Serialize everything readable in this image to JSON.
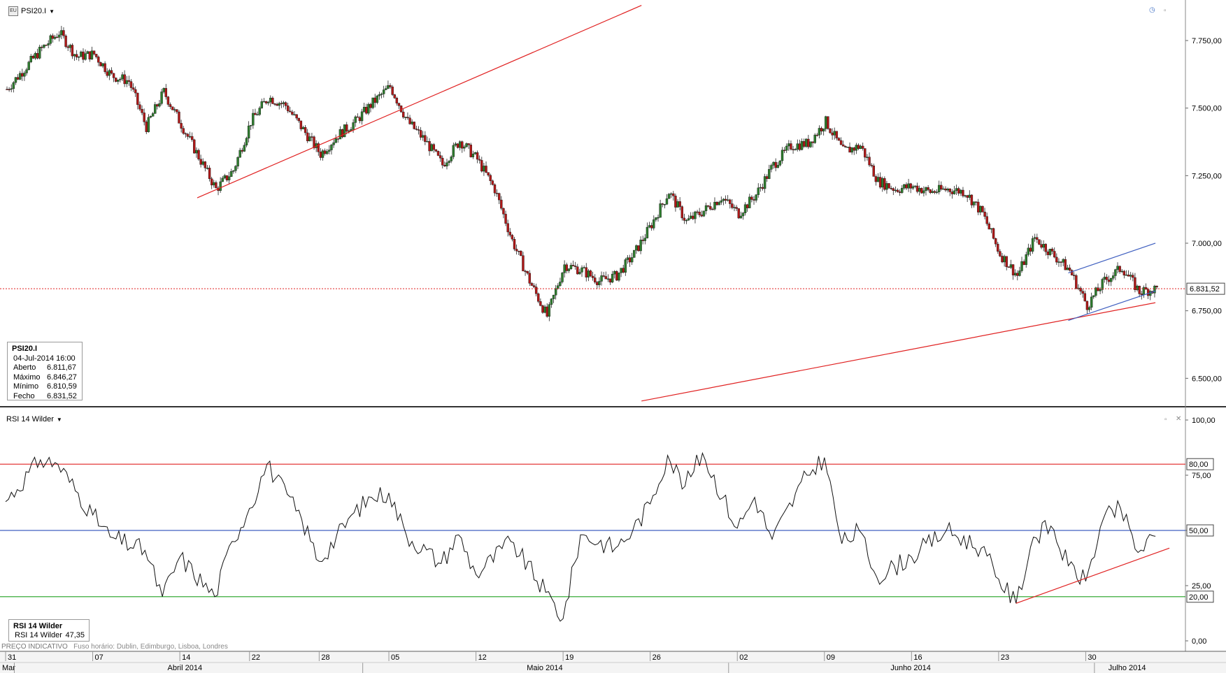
{
  "main_pane": {
    "symbol": "PSI20.I",
    "info": {
      "title": "PSI20.I",
      "datetime": "04-Jul-2014 16:00",
      "rows": [
        {
          "label": "Aberto",
          "value": "6.811,67"
        },
        {
          "label": "Máximo",
          "value": "6.846,27"
        },
        {
          "label": "Mínimo",
          "value": "6.810,59"
        },
        {
          "label": "Fecho",
          "value": "6.831,52"
        }
      ]
    },
    "current_price_label": "6.831,52"
  },
  "rsi_pane": {
    "name": "RSI 14 Wilder",
    "info": {
      "title": "RSI 14 Wilder",
      "label": "RSI 14 Wilder",
      "value": "47,35"
    },
    "level_labels": {
      "high": "80,00",
      "mid": "50,00",
      "low": "20,00"
    }
  },
  "footer": {
    "note_label": "PREÇO INDICATIVO",
    "timezone": "Fuso horário: Dublin, Edimburgo, Lisboa, Londres"
  },
  "chart_data": [
    {
      "type": "candlestick",
      "title": "PSI20.I",
      "x_start": "2014-03-31",
      "x_end": "2014-07-04",
      "interval": "hourly",
      "ylim": [
        6400,
        7900
      ],
      "y_ticks": [
        "6.500,00",
        "6.750,00",
        "7.000,00",
        "7.250,00",
        "7.500,00",
        "7.750,00"
      ],
      "x_day_ticks": [
        "31",
        "07",
        "14",
        "22",
        "28",
        "05",
        "12",
        "19",
        "26",
        "02",
        "09",
        "16",
        "23",
        "30"
      ],
      "x_month_ticks": [
        "Mar",
        "Abril 2014",
        "Maio 2014",
        "Junho 2014",
        "Julho 2014"
      ],
      "close_path": [
        {
          "x": "2014-03-31",
          "y": 7570
        },
        {
          "x": "2014-04-02",
          "y": 7720
        },
        {
          "x": "2014-04-03",
          "y": 7780
        },
        {
          "x": "2014-04-04",
          "y": 7690
        },
        {
          "x": "2014-04-07",
          "y": 7700
        },
        {
          "x": "2014-04-08",
          "y": 7620
        },
        {
          "x": "2014-04-09",
          "y": 7600
        },
        {
          "x": "2014-04-10",
          "y": 7430
        },
        {
          "x": "2014-04-11",
          "y": 7560
        },
        {
          "x": "2014-04-14",
          "y": 7440
        },
        {
          "x": "2014-04-15",
          "y": 7320
        },
        {
          "x": "2014-04-16",
          "y": 7200
        },
        {
          "x": "2014-04-17",
          "y": 7270
        },
        {
          "x": "2014-04-22",
          "y": 7450
        },
        {
          "x": "2014-04-23",
          "y": 7540
        },
        {
          "x": "2014-04-24",
          "y": 7510
        },
        {
          "x": "2014-04-25",
          "y": 7420
        },
        {
          "x": "2014-04-28",
          "y": 7330
        },
        {
          "x": "2014-04-29",
          "y": 7400
        },
        {
          "x": "2014-04-30",
          "y": 7450
        },
        {
          "x": "2014-05-02",
          "y": 7520
        },
        {
          "x": "2014-05-05",
          "y": 7580
        },
        {
          "x": "2014-05-06",
          "y": 7450
        },
        {
          "x": "2014-05-07",
          "y": 7380
        },
        {
          "x": "2014-05-08",
          "y": 7290
        },
        {
          "x": "2014-05-09",
          "y": 7380
        },
        {
          "x": "2014-05-12",
          "y": 7310
        },
        {
          "x": "2014-05-13",
          "y": 7200
        },
        {
          "x": "2014-05-14",
          "y": 7010
        },
        {
          "x": "2014-05-15",
          "y": 6860
        },
        {
          "x": "2014-05-16",
          "y": 6730
        },
        {
          "x": "2014-05-19",
          "y": 6920
        },
        {
          "x": "2014-05-20",
          "y": 6900
        },
        {
          "x": "2014-05-21",
          "y": 6860
        },
        {
          "x": "2014-05-22",
          "y": 6880
        },
        {
          "x": "2014-05-23",
          "y": 6960
        },
        {
          "x": "2014-05-26",
          "y": 7070
        },
        {
          "x": "2014-05-27",
          "y": 7190
        },
        {
          "x": "2014-05-28",
          "y": 7080
        },
        {
          "x": "2014-05-29",
          "y": 7120
        },
        {
          "x": "2014-05-30",
          "y": 7170
        },
        {
          "x": "2014-06-02",
          "y": 7110
        },
        {
          "x": "2014-06-03",
          "y": 7180
        },
        {
          "x": "2014-06-04",
          "y": 7290
        },
        {
          "x": "2014-06-05",
          "y": 7360
        },
        {
          "x": "2014-06-06",
          "y": 7370
        },
        {
          "x": "2014-06-09",
          "y": 7450
        },
        {
          "x": "2014-06-10",
          "y": 7340
        },
        {
          "x": "2014-06-11",
          "y": 7360
        },
        {
          "x": "2014-06-12",
          "y": 7230
        },
        {
          "x": "2014-06-13",
          "y": 7200
        },
        {
          "x": "2014-06-16",
          "y": 7210
        },
        {
          "x": "2014-06-17",
          "y": 7190
        },
        {
          "x": "2014-06-18",
          "y": 7200
        },
        {
          "x": "2014-06-19",
          "y": 7190
        },
        {
          "x": "2014-06-20",
          "y": 7110
        },
        {
          "x": "2014-06-23",
          "y": 6960
        },
        {
          "x": "2014-06-24",
          "y": 6880
        },
        {
          "x": "2014-06-25",
          "y": 7020
        },
        {
          "x": "2014-06-26",
          "y": 6960
        },
        {
          "x": "2014-06-27",
          "y": 6900
        },
        {
          "x": "2014-06-30",
          "y": 6770
        },
        {
          "x": "2014-07-01",
          "y": 6860
        },
        {
          "x": "2014-07-02",
          "y": 6910
        },
        {
          "x": "2014-07-03",
          "y": 6820
        },
        {
          "x": "2014-07-04",
          "y": 6832
        }
      ],
      "last_price": 6831.52,
      "trendlines": [
        {
          "color": "#e02020",
          "points": [
            {
              "x": "2014-04-15",
              "y": 7168
            },
            {
              "x": "2014-05-24",
              "y": 7880
            }
          ]
        },
        {
          "color": "#e02020",
          "points": [
            {
              "x": "2014-05-24",
              "y": 6416
            },
            {
              "x": "2014-07-04",
              "y": 6780
            }
          ]
        },
        {
          "color": "#4060c0",
          "points": [
            {
              "x": "2014-06-27",
              "y": 6890
            },
            {
              "x": "2014-07-04",
              "y": 7000
            }
          ]
        },
        {
          "color": "#4060c0",
          "points": [
            {
              "x": "2014-06-27",
              "y": 6714
            },
            {
              "x": "2014-07-04",
              "y": 6823
            }
          ]
        }
      ],
      "colors": {
        "up": "#2e7d2e",
        "down": "#b01818",
        "price_line": "#e02020"
      }
    },
    {
      "type": "line",
      "title": "RSI 14 Wilder",
      "ylim": [
        0,
        100
      ],
      "y_ticks": [
        "0,00",
        "25,00",
        "50,00",
        "75,00",
        "100,00"
      ],
      "levels": [
        {
          "y": 80,
          "color": "#e02020"
        },
        {
          "y": 50,
          "color": "#4060c0"
        },
        {
          "y": 20,
          "color": "#20a020"
        }
      ],
      "series": [
        {
          "name": "RSI 14 Wilder",
          "points": [
            {
              "x": "2014-03-31",
              "y": 63
            },
            {
              "x": "2014-04-02",
              "y": 82
            },
            {
              "x": "2014-04-03",
              "y": 80
            },
            {
              "x": "2014-04-07",
              "y": 57
            },
            {
              "x": "2014-04-08",
              "y": 47
            },
            {
              "x": "2014-04-10",
              "y": 41
            },
            {
              "x": "2014-04-11",
              "y": 20
            },
            {
              "x": "2014-04-14",
              "y": 38
            },
            {
              "x": "2014-04-16",
              "y": 20
            },
            {
              "x": "2014-04-17",
              "y": 45
            },
            {
              "x": "2014-04-22",
              "y": 60
            },
            {
              "x": "2014-04-23",
              "y": 80
            },
            {
              "x": "2014-04-25",
              "y": 55
            },
            {
              "x": "2014-04-28",
              "y": 36
            },
            {
              "x": "2014-04-30",
              "y": 58
            },
            {
              "x": "2014-05-02",
              "y": 65
            },
            {
              "x": "2014-05-05",
              "y": 67
            },
            {
              "x": "2014-05-06",
              "y": 48
            },
            {
              "x": "2014-05-08",
              "y": 35
            },
            {
              "x": "2014-05-09",
              "y": 48
            },
            {
              "x": "2014-05-12",
              "y": 30
            },
            {
              "x": "2014-05-14",
              "y": 45
            },
            {
              "x": "2014-05-16",
              "y": 22
            },
            {
              "x": "2014-05-19",
              "y": 10
            },
            {
              "x": "2014-05-20",
              "y": 48
            },
            {
              "x": "2014-05-22",
              "y": 42
            },
            {
              "x": "2014-05-23",
              "y": 50
            },
            {
              "x": "2014-05-26",
              "y": 62
            },
            {
              "x": "2014-05-27",
              "y": 84
            },
            {
              "x": "2014-05-28",
              "y": 70
            },
            {
              "x": "2014-05-29",
              "y": 85
            },
            {
              "x": "2014-06-02",
              "y": 51
            },
            {
              "x": "2014-06-03",
              "y": 65
            },
            {
              "x": "2014-06-04",
              "y": 46
            },
            {
              "x": "2014-06-06",
              "y": 75
            },
            {
              "x": "2014-06-09",
              "y": 83
            },
            {
              "x": "2014-06-10",
              "y": 44
            },
            {
              "x": "2014-06-11",
              "y": 50
            },
            {
              "x": "2014-06-12",
              "y": 29
            },
            {
              "x": "2014-06-16",
              "y": 38
            },
            {
              "x": "2014-06-18",
              "y": 50
            },
            {
              "x": "2014-06-20",
              "y": 42
            },
            {
              "x": "2014-06-23",
              "y": 28
            },
            {
              "x": "2014-06-24",
              "y": 17
            },
            {
              "x": "2014-06-25",
              "y": 47
            },
            {
              "x": "2014-06-26",
              "y": 52
            },
            {
              "x": "2014-06-27",
              "y": 34
            },
            {
              "x": "2014-06-30",
              "y": 27
            },
            {
              "x": "2014-07-01",
              "y": 55
            },
            {
              "x": "2014-07-02",
              "y": 60
            },
            {
              "x": "2014-07-03",
              "y": 40
            },
            {
              "x": "2014-07-04",
              "y": 47.35
            }
          ]
        }
      ],
      "trendline": {
        "color": "#e02020",
        "points": [
          {
            "x": "2014-06-24",
            "y": 17
          },
          {
            "x": "2014-07-04",
            "y": 39
          }
        ]
      }
    }
  ]
}
